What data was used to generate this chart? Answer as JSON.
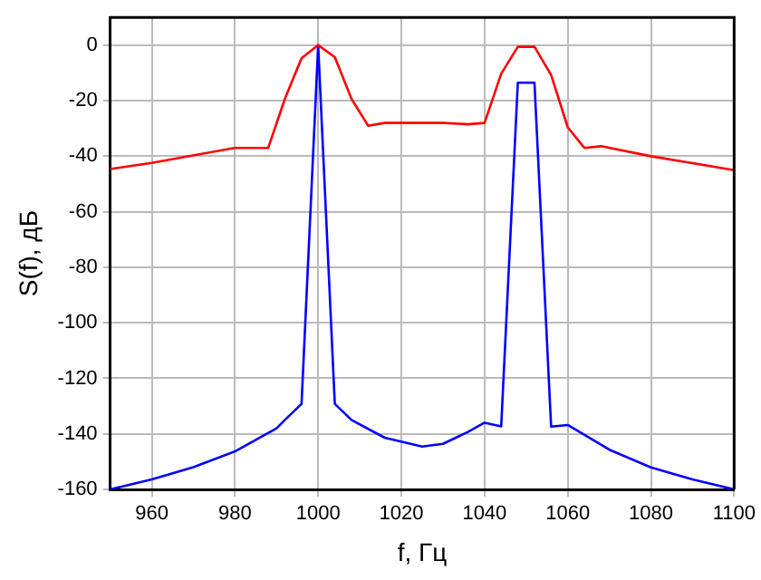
{
  "chart_data": {
    "type": "line",
    "xlabel": "f, Гц",
    "ylabel": "S(f), дБ",
    "xlim": [
      950,
      1100
    ],
    "ylim": [
      -160,
      10
    ],
    "xticks": [
      960,
      980,
      1000,
      1020,
      1040,
      1060,
      1080,
      1100
    ],
    "yticks": [
      -160,
      -140,
      -120,
      -100,
      -80,
      -60,
      -40,
      -20,
      0
    ],
    "grid": true,
    "legend": false,
    "marker": "none",
    "line_style": "solid",
    "series": [
      {
        "color": "#ff0000",
        "x": [
          950,
          960,
          980,
          988,
          992,
          996,
          1000,
          1004,
          1008,
          1012,
          1016,
          1030,
          1036,
          1040,
          1044,
          1048,
          1052,
          1056,
          1060,
          1064,
          1068,
          1080,
          1100
        ],
        "values": [
          -44.6,
          -42.4,
          -37,
          -37,
          -19.3,
          -4.7,
          0,
          -4.3,
          -19.3,
          -29,
          -28,
          -28,
          -28.5,
          -28,
          -10.3,
          -0.6,
          -0.6,
          -10.7,
          -29.6,
          -37,
          -36.4,
          -40,
          -45
        ]
      },
      {
        "color": "#0000ff",
        "x": [
          950,
          960,
          970,
          980,
          990,
          992,
          996,
          1000,
          1004,
          1008,
          1016,
          1025,
          1030,
          1036,
          1040,
          1044,
          1048,
          1052,
          1056,
          1060,
          1070,
          1080,
          1090,
          1100
        ],
        "values": [
          -160,
          -156.4,
          -152,
          -146.3,
          -138,
          -135,
          -129.2,
          0,
          -129.2,
          -135,
          -141.4,
          -144.6,
          -143.6,
          -139.3,
          -136,
          -137.3,
          -13.5,
          -13.5,
          -137.4,
          -136.8,
          -145.7,
          -152.1,
          -156.4,
          -160
        ]
      }
    ]
  }
}
